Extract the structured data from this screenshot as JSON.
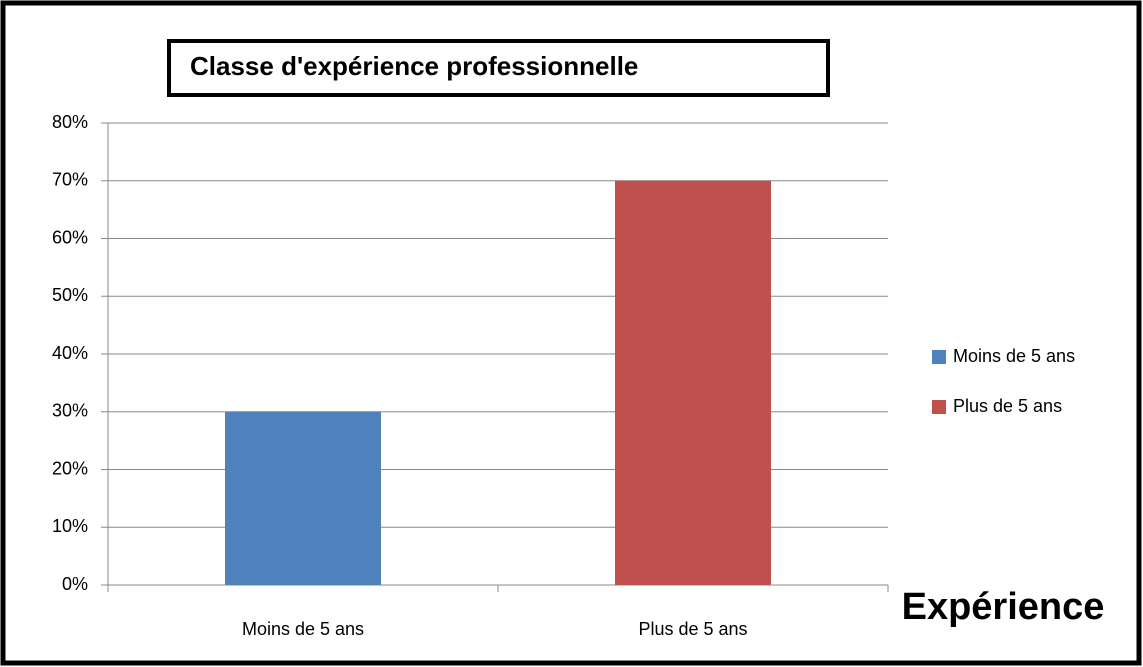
{
  "chart_data": {
    "type": "bar",
    "title": "Classe d'expérience professionnelle",
    "categories": [
      "Moins de 5 ans",
      "Plus de 5 ans"
    ],
    "values": [
      30,
      70
    ],
    "colors": [
      "#4f81bd",
      "#c0504d"
    ],
    "ylim": [
      0,
      80
    ],
    "yticks": [
      {
        "value": 0,
        "label": "0%"
      },
      {
        "value": 10,
        "label": "10%"
      },
      {
        "value": 20,
        "label": "20%"
      },
      {
        "value": 30,
        "label": "30%"
      },
      {
        "value": 40,
        "label": "40%"
      },
      {
        "value": 50,
        "label": "50%"
      },
      {
        "value": 60,
        "label": "60%"
      },
      {
        "value": 70,
        "label": "70%"
      },
      {
        "value": 80,
        "label": "80%"
      }
    ],
    "x_label": "Expérience",
    "grid": true,
    "legend": "right"
  }
}
